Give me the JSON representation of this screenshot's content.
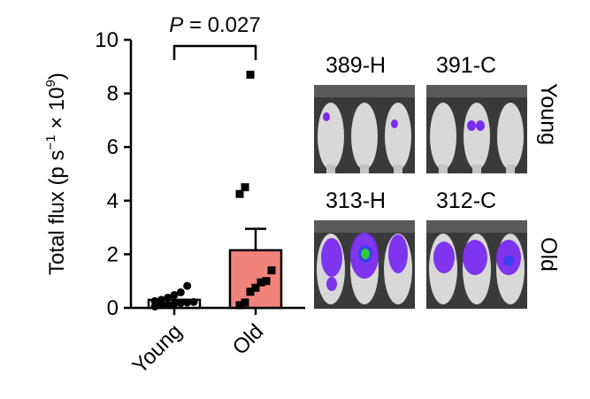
{
  "chart_data": {
    "type": "bar",
    "categories": [
      "Young",
      "Old"
    ],
    "ylim": [
      0,
      10
    ],
    "yticks": [
      0,
      2,
      4,
      6,
      8,
      10
    ],
    "ylabel_parts": [
      "Total flux (p s",
      "−1",
      " × 10",
      "9",
      ")"
    ],
    "bar_colors": [
      "#ffffff",
      "#f2837b"
    ],
    "series": [
      {
        "mean": 0.3,
        "sem_upper": 0.3,
        "points": [
          0.05,
          0.1,
          0.12,
          0.15,
          0.18,
          0.2,
          0.22,
          0.25,
          0.3,
          0.38,
          0.48,
          0.58,
          0.82
        ]
      },
      {
        "mean": 2.15,
        "sem_upper": 2.95,
        "points": [
          0.1,
          0.2,
          0.6,
          0.75,
          0.95,
          1.0,
          1.4,
          4.25,
          4.5,
          8.7
        ]
      }
    ],
    "significance": {
      "label_p": "P",
      "label_rest": " = 0.027"
    }
  },
  "images": {
    "labels": [
      "389-H",
      "391-C",
      "313-H",
      "312-C"
    ],
    "rows": [
      "Young",
      "Old"
    ]
  },
  "colors": {
    "signal_purple": "#7b2cf0",
    "signal_blue": "#3d3df2",
    "signal_green": "#2ecc3c",
    "background": "#2a2a2a"
  }
}
